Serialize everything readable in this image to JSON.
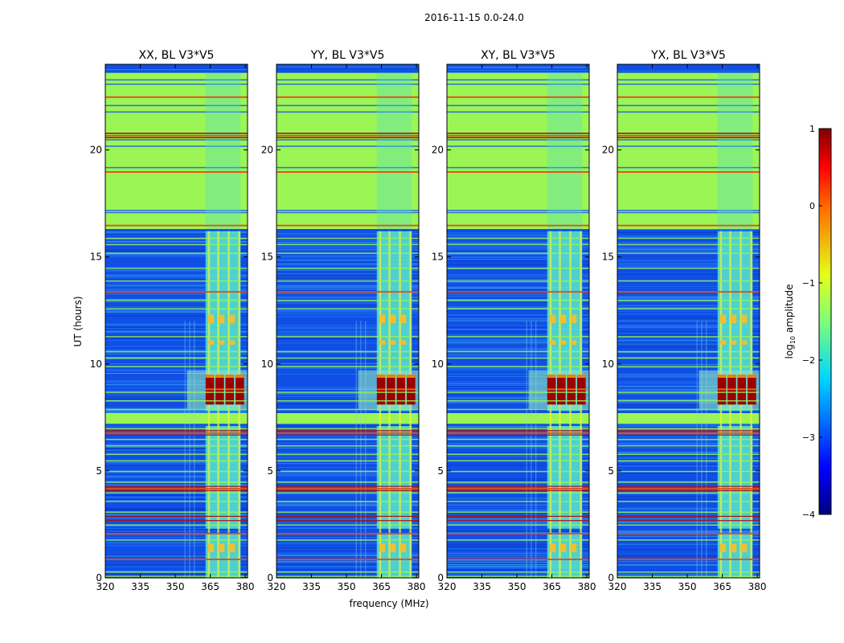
{
  "figure": {
    "suptitle": "2016-11-15 0.0-24.0"
  },
  "chart_data": {
    "type": "heatmap",
    "xlabel": "frequency (MHz)",
    "ylabel": "UT (hours)",
    "xlim": [
      320,
      381
    ],
    "ylim": [
      0,
      24
    ],
    "xticks": [
      320,
      335,
      350,
      365,
      380
    ],
    "yticks": [
      0,
      5,
      10,
      15,
      20
    ],
    "panels": [
      {
        "title": "XX, BL V3*V5"
      },
      {
        "title": "YY, BL V3*V5"
      },
      {
        "title": "XY, BL V3*V5"
      },
      {
        "title": "YX, BL V3*V5"
      }
    ],
    "colorbar": {
      "label": "log10 amplitude",
      "label_base": "log",
      "label_sub": "10",
      "label_rest": " amplitude",
      "range": [
        -4,
        1
      ],
      "ticks": [
        1,
        0,
        -1,
        -2,
        -3,
        -4
      ],
      "tick_labels": [
        "1",
        "0",
        "−1",
        "−2",
        "−3",
        "−4"
      ]
    },
    "features": {
      "flagged_bands_ut": [
        [
          7.2,
          7.7
        ],
        [
          16.3,
          23.6
        ]
      ],
      "rfi_lines_ut": [
        2.1,
        0.9,
        4.2,
        6.8,
        13.4,
        16.5,
        19.0,
        20.7,
        22.5
      ],
      "strong_emission_ut": [
        8.1,
        9.5
      ],
      "signal_band_mhz": [
        363,
        378
      ]
    },
    "colors": {
      "background": "#0f4fe6",
      "flagged": "#9bf554",
      "rfi": "#e64b1a",
      "signal": "#54dfcc",
      "strong": "#9a0000"
    }
  }
}
